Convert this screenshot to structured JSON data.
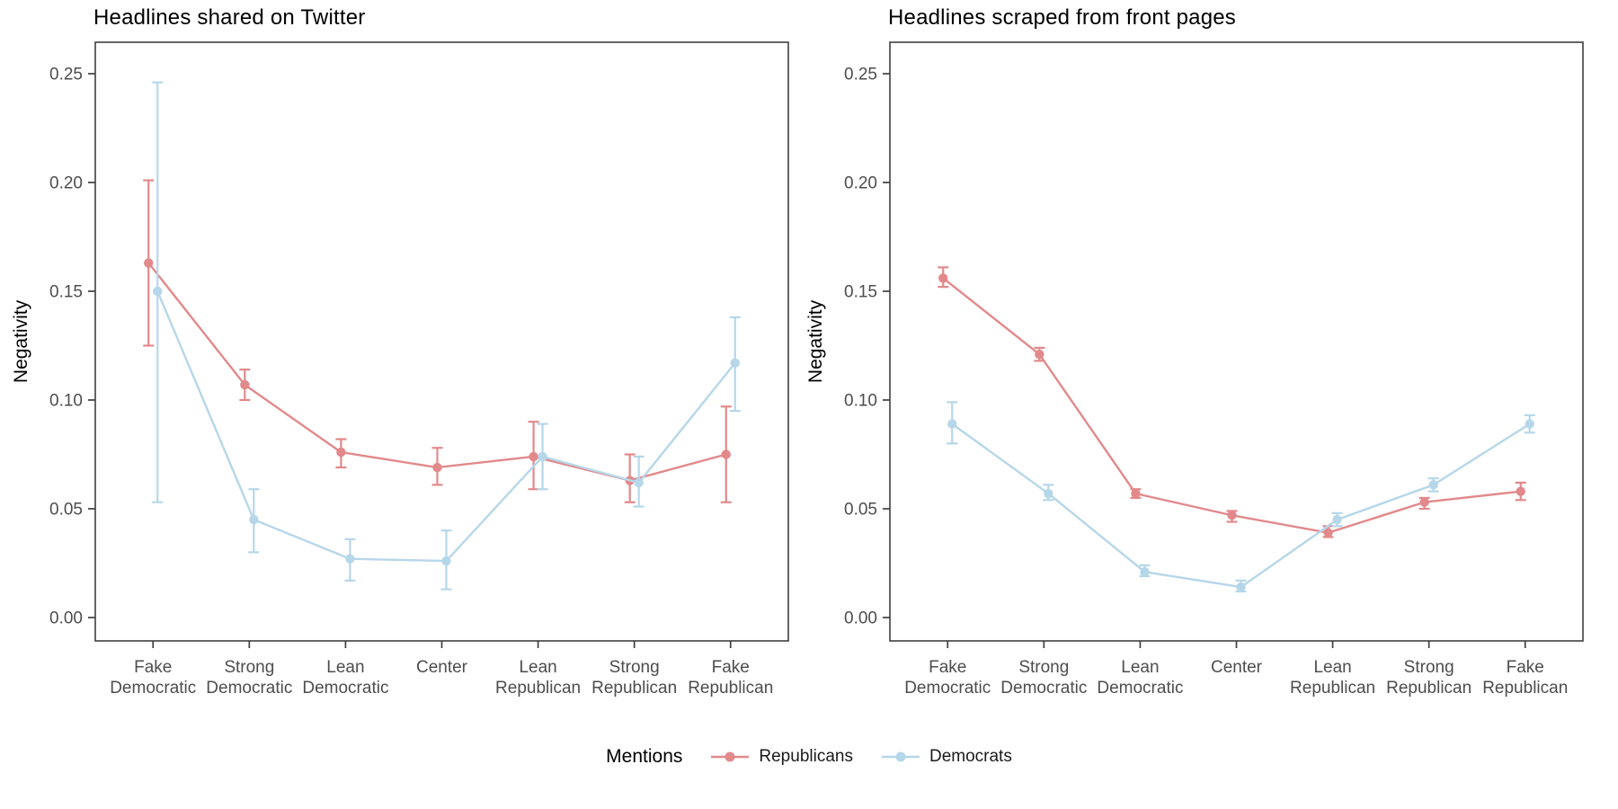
{
  "figure": {
    "background": "#FFFFFF",
    "axis_color": "#3F3F3F",
    "tick_label_color": "#4D4D4D"
  },
  "legend": {
    "title": "Mentions",
    "position": "bottom-center",
    "entries": [
      {
        "name": "Republicans",
        "color": "#E2898B"
      },
      {
        "name": "Democrats",
        "color": "#B6D7E9"
      }
    ]
  },
  "chart_data": [
    {
      "type": "line",
      "title": "Headlines shared on Twitter",
      "xlabel": "",
      "ylabel": "Negativity",
      "ylim": [
        -0.011,
        0.265
      ],
      "yticks": [
        0.0,
        0.05,
        0.1,
        0.15,
        0.2,
        0.25
      ],
      "grid": false,
      "error_bars": true,
      "categories": [
        "Fake Democratic",
        "Strong Democratic",
        "Lean Democratic",
        "Center",
        "Lean Republican",
        "Strong Republican",
        "Fake Republican"
      ],
      "series": [
        {
          "name": "Republicans",
          "color": "#E2898B",
          "values": [
            0.163,
            0.107,
            0.076,
            0.069,
            0.074,
            0.063,
            0.075
          ],
          "ci_low": [
            0.125,
            0.1,
            0.069,
            0.061,
            0.059,
            0.053,
            0.053
          ],
          "ci_high": [
            0.201,
            0.114,
            0.082,
            0.078,
            0.09,
            0.075,
            0.097
          ]
        },
        {
          "name": "Democrats",
          "color": "#B6D7E9",
          "values": [
            0.15,
            0.045,
            0.027,
            0.026,
            0.074,
            0.062,
            0.117
          ],
          "ci_low": [
            0.053,
            0.03,
            0.017,
            0.013,
            0.059,
            0.051,
            0.095
          ],
          "ci_high": [
            0.246,
            0.059,
            0.036,
            0.04,
            0.089,
            0.074,
            0.138
          ]
        }
      ]
    },
    {
      "type": "line",
      "title": "Headlines scraped from front pages",
      "xlabel": "",
      "ylabel": "Negativity",
      "ylim": [
        -0.011,
        0.265
      ],
      "yticks": [
        0.0,
        0.05,
        0.1,
        0.15,
        0.2,
        0.25
      ],
      "grid": false,
      "error_bars": true,
      "categories": [
        "Fake Democratic",
        "Strong Democratic",
        "Lean Democratic",
        "Center",
        "Lean Republican",
        "Strong Republican",
        "Fake Republican"
      ],
      "series": [
        {
          "name": "Republicans",
          "color": "#E2898B",
          "values": [
            0.156,
            0.121,
            0.057,
            0.047,
            0.039,
            0.053,
            0.058
          ],
          "ci_low": [
            0.152,
            0.118,
            0.055,
            0.044,
            0.037,
            0.05,
            0.054
          ],
          "ci_high": [
            0.161,
            0.124,
            0.059,
            0.049,
            0.042,
            0.055,
            0.062
          ]
        },
        {
          "name": "Democrats",
          "color": "#B6D7E9",
          "values": [
            0.089,
            0.057,
            0.021,
            0.014,
            0.045,
            0.061,
            0.089
          ],
          "ci_low": [
            0.08,
            0.054,
            0.019,
            0.012,
            0.042,
            0.058,
            0.085
          ],
          "ci_high": [
            0.099,
            0.061,
            0.024,
            0.017,
            0.048,
            0.064,
            0.093
          ]
        }
      ]
    }
  ]
}
